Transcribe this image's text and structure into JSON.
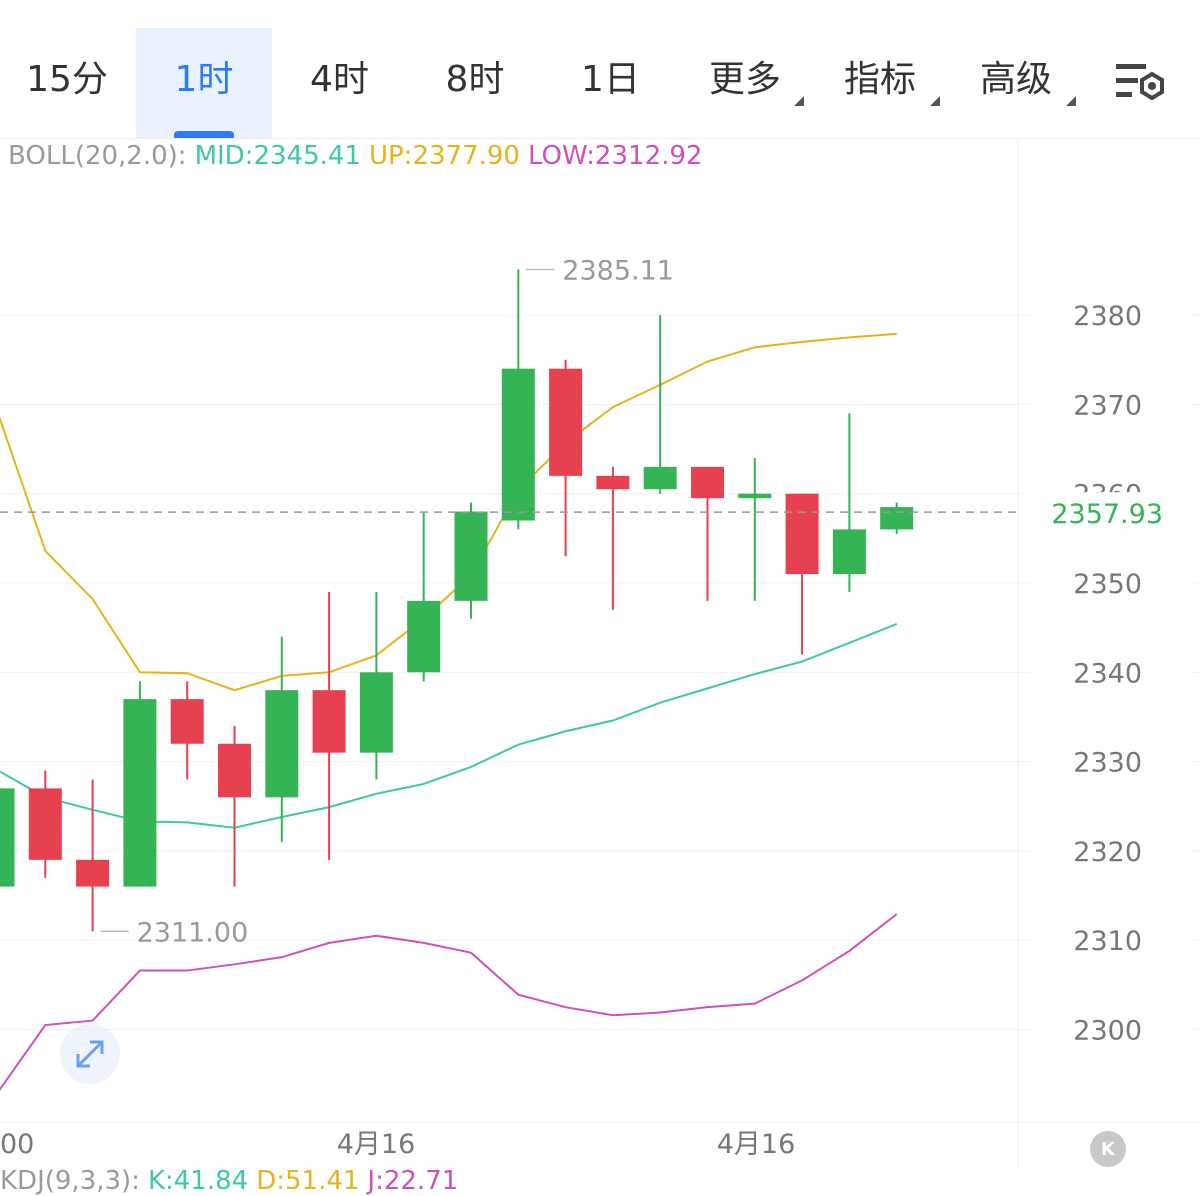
{
  "tabs": [
    {
      "label": "15分",
      "active": false
    },
    {
      "label": "1时",
      "active": true
    },
    {
      "label": "4时",
      "active": false
    },
    {
      "label": "8时",
      "active": false
    },
    {
      "label": "1日",
      "active": false
    },
    {
      "label": "更多",
      "active": false,
      "dropdown": true
    },
    {
      "label": "指标",
      "active": false,
      "dropdown": true
    },
    {
      "label": "高级",
      "active": false,
      "dropdown": true
    }
  ],
  "settings_icon": "chart-settings-icon",
  "boll": {
    "label": "BOLL(20,2.0):",
    "mid": "MID:2345.41",
    "up": "UP:2377.90",
    "low": "LOW:2312.92"
  },
  "kdj": {
    "label": "KDJ(9,3,3):",
    "k": "K:41.84",
    "d": "D:51.41",
    "j": "J:22.71"
  },
  "colors": {
    "up": "#35b455",
    "down": "#e5414e",
    "mid": "#3dc8a8",
    "upper": "#e8b21c",
    "lower": "#d14fb8",
    "accent": "#2f7cf0"
  },
  "chart_data": {
    "type": "candlestick",
    "y_ticks": [
      "2300",
      "2310",
      "2320",
      "2330",
      "2340",
      "2350",
      "2360",
      "2370",
      "2380"
    ],
    "ylim": [
      2291,
      2395
    ],
    "x_labels": [
      "00",
      "4月16",
      "4月16"
    ],
    "current_price": "2357.93",
    "high_marker": "2385.11",
    "low_marker": "2311.00",
    "candles": [
      {
        "o": 2316,
        "h": 2327,
        "l": 2316,
        "c": 2327
      },
      {
        "o": 2327,
        "h": 2329,
        "l": 2317,
        "c": 2319
      },
      {
        "o": 2319,
        "h": 2328,
        "l": 2311,
        "c": 2316
      },
      {
        "o": 2316,
        "h": 2339,
        "l": 2316,
        "c": 2337
      },
      {
        "o": 2337,
        "h": 2339,
        "l": 2328,
        "c": 2332
      },
      {
        "o": 2332,
        "h": 2334,
        "l": 2316,
        "c": 2326
      },
      {
        "o": 2326,
        "h": 2344,
        "l": 2321,
        "c": 2338
      },
      {
        "o": 2338,
        "h": 2349,
        "l": 2319,
        "c": 2331
      },
      {
        "o": 2331,
        "h": 2349,
        "l": 2328,
        "c": 2340
      },
      {
        "o": 2340,
        "h": 2358,
        "l": 2339,
        "c": 2348
      },
      {
        "o": 2348,
        "h": 2359,
        "l": 2346,
        "c": 2358
      },
      {
        "o": 2357,
        "h": 2385.11,
        "l": 2356,
        "c": 2374
      },
      {
        "o": 2374,
        "h": 2375,
        "l": 2353,
        "c": 2362
      },
      {
        "o": 2362,
        "h": 2363,
        "l": 2347,
        "c": 2360.5
      },
      {
        "o": 2360.5,
        "h": 2380,
        "l": 2360,
        "c": 2363
      },
      {
        "o": 2363,
        "h": 2363,
        "l": 2348,
        "c": 2359.5
      },
      {
        "o": 2359.5,
        "h": 2364,
        "l": 2348,
        "c": 2360
      },
      {
        "o": 2360,
        "h": 2360,
        "l": 2342,
        "c": 2351
      },
      {
        "o": 2351,
        "h": 2369,
        "l": 2349,
        "c": 2356
      },
      {
        "o": 2356,
        "h": 2359,
        "l": 2355.5,
        "c": 2358.5
      }
    ],
    "series": [
      {
        "name": "MID",
        "values": [
          2329,
          2326,
          2324.6,
          2323.3,
          2323.2,
          2322.6,
          2323.8,
          2324.9,
          2326.4,
          2327.5,
          2329.4,
          2331.9,
          2333.4,
          2334.6,
          2336.6,
          2338.2,
          2339.8,
          2341.2,
          2343.3,
          2345.41
        ]
      },
      {
        "name": "UP",
        "values": [
          2369,
          2353.6,
          2348.2,
          2340,
          2339.9,
          2338,
          2339.6,
          2340,
          2341.9,
          2346,
          2350.9,
          2360.4,
          2365.7,
          2369.7,
          2372.2,
          2374.8,
          2376.4,
          2377,
          2377.5,
          2377.9
        ]
      },
      {
        "name": "LOW",
        "values": [
          2293,
          2300.5,
          2301,
          2306.6,
          2306.6,
          2307.3,
          2308.1,
          2309.7,
          2310.5,
          2309.7,
          2308.6,
          2303.9,
          2302.5,
          2301.6,
          2301.9,
          2302.5,
          2302.9,
          2305.5,
          2308.8,
          2312.92
        ]
      }
    ]
  }
}
